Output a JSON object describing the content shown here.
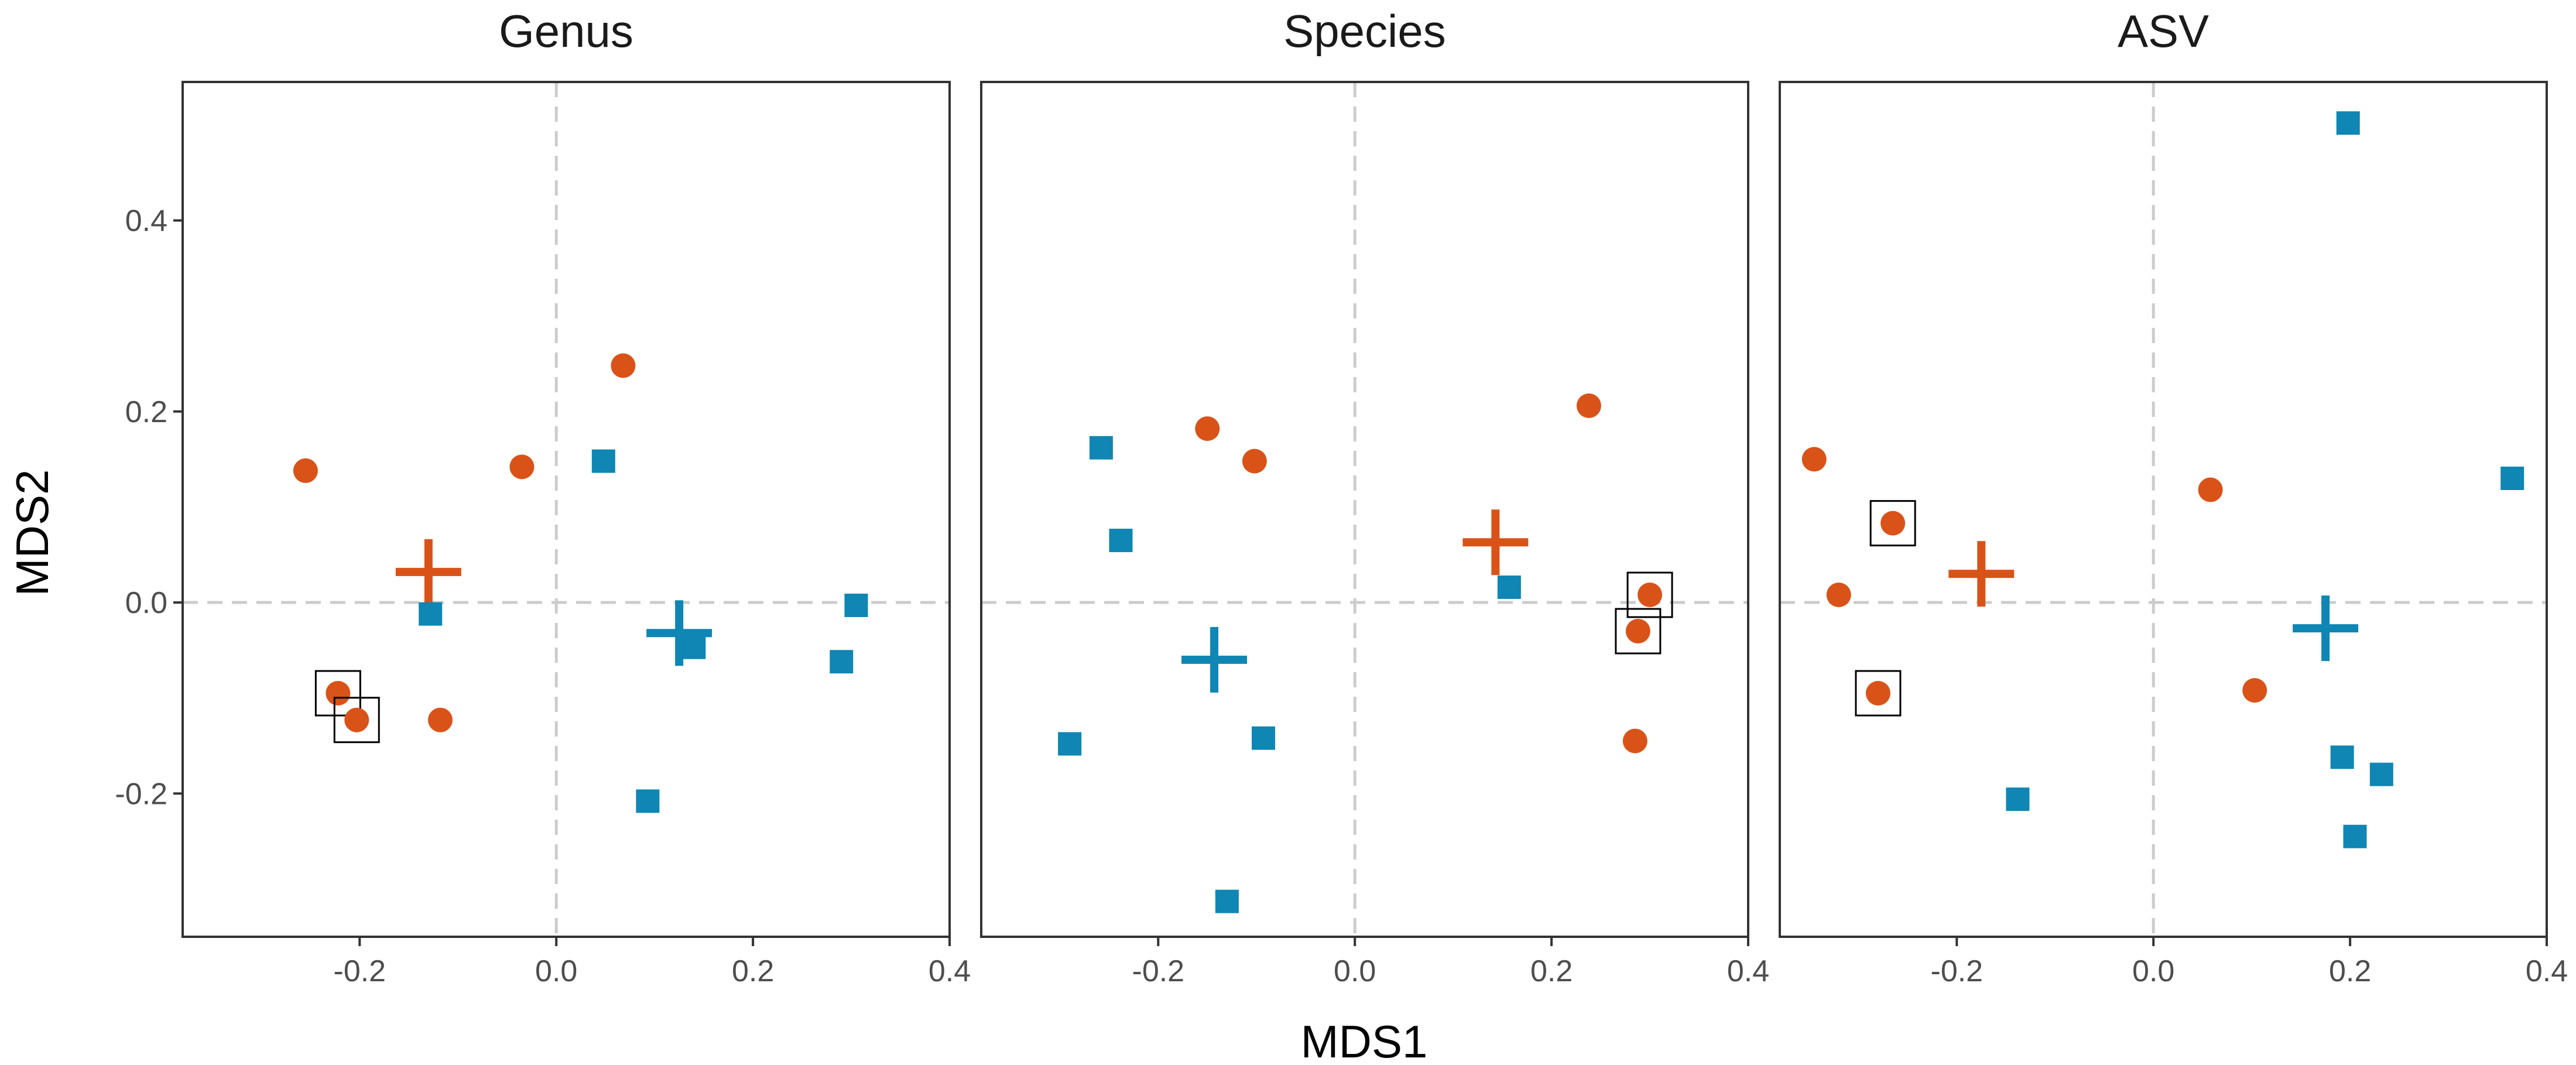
{
  "chart_data": {
    "type": "scatter",
    "xlabel": "MDS1",
    "ylabel": "MDS2",
    "xlim": [
      -0.38,
      0.4
    ],
    "ylim": [
      -0.35,
      0.545
    ],
    "x_ticks": [
      {
        "value": -0.2,
        "label": "-0.2"
      },
      {
        "value": 0.0,
        "label": "0.0"
      },
      {
        "value": 0.2,
        "label": "0.2"
      },
      {
        "value": 0.4,
        "label": "0.4"
      }
    ],
    "y_ticks": [
      {
        "value": -0.2,
        "label": "-0.2"
      },
      {
        "value": 0.0,
        "label": "0.0"
      },
      {
        "value": 0.2,
        "label": "0.2"
      },
      {
        "value": 0.4,
        "label": "0.4"
      }
    ],
    "reference_lines": {
      "x": 0,
      "y": 0
    },
    "colors": {
      "group_circle": "#D95319",
      "group_square": "#0F86B3",
      "frame": "#333333",
      "reference": "#cccccc"
    },
    "panels": [
      {
        "title": "Genus",
        "series": [
          {
            "name": "circle-group",
            "marker": "circle",
            "color": "#D95319",
            "points": [
              {
                "x": -0.255,
                "y": 0.138,
                "boxed": false
              },
              {
                "x": 0.068,
                "y": 0.248,
                "boxed": false
              },
              {
                "x": -0.035,
                "y": 0.142,
                "boxed": false
              },
              {
                "x": -0.222,
                "y": -0.095,
                "boxed": true
              },
              {
                "x": -0.203,
                "y": -0.123,
                "boxed": true
              },
              {
                "x": -0.118,
                "y": -0.123,
                "boxed": false
              }
            ],
            "centroid": {
              "x": -0.13,
              "y": 0.032
            }
          },
          {
            "name": "square-group",
            "marker": "square",
            "color": "#0F86B3",
            "points": [
              {
                "x": 0.048,
                "y": 0.148,
                "boxed": false
              },
              {
                "x": -0.128,
                "y": -0.012,
                "boxed": false
              },
              {
                "x": 0.14,
                "y": -0.047,
                "boxed": false
              },
              {
                "x": 0.305,
                "y": -0.003,
                "boxed": false
              },
              {
                "x": 0.29,
                "y": -0.062,
                "boxed": false
              },
              {
                "x": 0.093,
                "y": -0.208,
                "boxed": false
              }
            ],
            "centroid": {
              "x": 0.125,
              "y": -0.032
            }
          }
        ]
      },
      {
        "title": "Species",
        "series": [
          {
            "name": "circle-group",
            "marker": "circle",
            "color": "#D95319",
            "points": [
              {
                "x": -0.15,
                "y": 0.182,
                "boxed": false
              },
              {
                "x": -0.102,
                "y": 0.148,
                "boxed": false
              },
              {
                "x": 0.238,
                "y": 0.206,
                "boxed": false
              },
              {
                "x": 0.3,
                "y": 0.008,
                "boxed": true
              },
              {
                "x": 0.288,
                "y": -0.03,
                "boxed": true
              },
              {
                "x": 0.285,
                "y": -0.145,
                "boxed": false
              }
            ],
            "centroid": {
              "x": 0.143,
              "y": 0.063
            }
          },
          {
            "name": "square-group",
            "marker": "square",
            "color": "#0F86B3",
            "points": [
              {
                "x": -0.258,
                "y": 0.162,
                "boxed": false
              },
              {
                "x": -0.238,
                "y": 0.065,
                "boxed": false
              },
              {
                "x": 0.157,
                "y": 0.016,
                "boxed": false
              },
              {
                "x": -0.29,
                "y": -0.148,
                "boxed": false
              },
              {
                "x": -0.093,
                "y": -0.142,
                "boxed": false
              },
              {
                "x": -0.13,
                "y": -0.313,
                "boxed": false
              }
            ],
            "centroid": {
              "x": -0.143,
              "y": -0.06
            }
          }
        ]
      },
      {
        "title": "ASV",
        "series": [
          {
            "name": "circle-group",
            "marker": "circle",
            "color": "#D95319",
            "points": [
              {
                "x": -0.345,
                "y": 0.15,
                "boxed": false
              },
              {
                "x": -0.32,
                "y": 0.008,
                "boxed": false
              },
              {
                "x": -0.265,
                "y": 0.083,
                "boxed": true
              },
              {
                "x": -0.28,
                "y": -0.095,
                "boxed": true
              },
              {
                "x": 0.058,
                "y": 0.118,
                "boxed": false
              },
              {
                "x": 0.103,
                "y": -0.092,
                "boxed": false
              }
            ],
            "centroid": {
              "x": -0.175,
              "y": 0.03
            }
          },
          {
            "name": "square-group",
            "marker": "square",
            "color": "#0F86B3",
            "points": [
              {
                "x": 0.198,
                "y": 0.502,
                "boxed": false
              },
              {
                "x": 0.365,
                "y": 0.13,
                "boxed": false
              },
              {
                "x": -0.138,
                "y": -0.206,
                "boxed": false
              },
              {
                "x": 0.192,
                "y": -0.162,
                "boxed": false
              },
              {
                "x": 0.232,
                "y": -0.18,
                "boxed": false
              },
              {
                "x": 0.205,
                "y": -0.245,
                "boxed": false
              }
            ],
            "centroid": {
              "x": 0.175,
              "y": -0.027
            }
          }
        ]
      }
    ]
  }
}
